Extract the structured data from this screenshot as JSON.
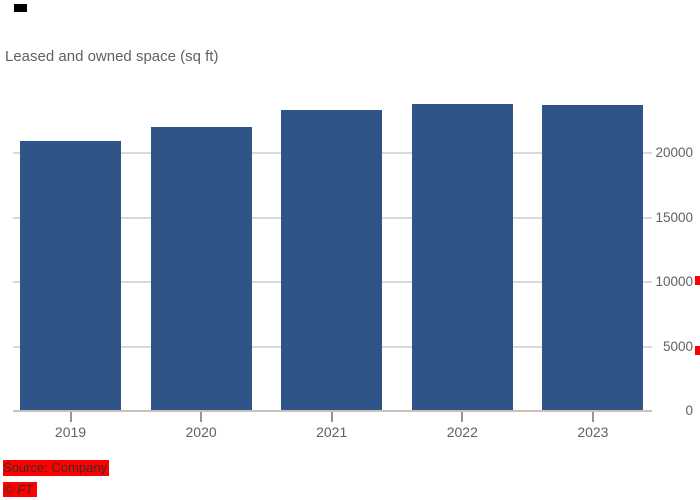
{
  "title": "Leased and owned space (sq ft)",
  "source": {
    "line1": "Source: Company",
    "line2": "© FT"
  },
  "colors": {
    "bar": "#2F5588",
    "gridline": "#D9D9D9",
    "baseline": "#CCC1B7",
    "axis_label": "#66605C",
    "highlight_red": "#FF0000",
    "source_text": "#33302E",
    "top_left_marker": "#000000"
  },
  "chart_data": {
    "type": "bar",
    "title": "Leased and owned space (sq ft)",
    "categories": [
      "2019",
      "2020",
      "2021",
      "2022",
      "2023"
    ],
    "values": [
      20900,
      22000,
      23300,
      23800,
      23700
    ],
    "xlabel": "",
    "ylabel": "",
    "ylim": [
      0,
      24000
    ],
    "yticks": [
      0,
      5000,
      10000,
      15000,
      20000
    ],
    "ytick_labels": [
      "0",
      "5000",
      "10000",
      "15000",
      "20000"
    ],
    "y_axis_side": "right",
    "grid": true,
    "gridlines_behind_bars": true,
    "legend": "none"
  },
  "artifacts": {
    "red_edge_markers_near": [
      "10000",
      "5000"
    ]
  }
}
